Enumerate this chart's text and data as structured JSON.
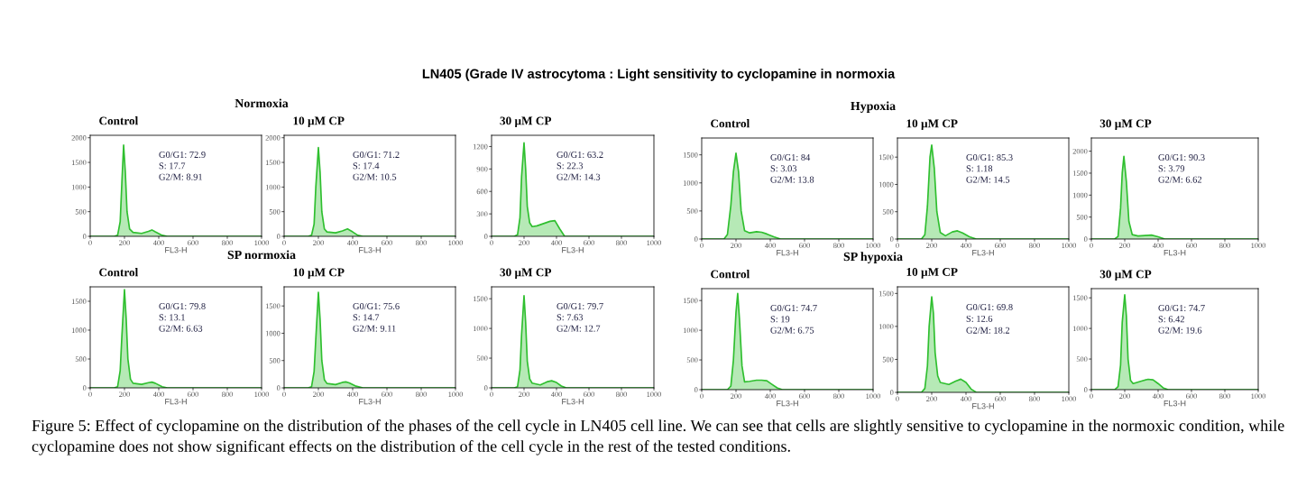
{
  "chart_data": [
    {
      "type": "other",
      "title": "LN405 (Grade IV astrocytoma : Light sensitivity to cyclopamine in normoxia",
      "annotations": [
        "Figure 5: Effect of cyclopamine on the distribution of the phases of the cell cycle in LN405 cell line. We can see that cells are slightly sensitive to cyclopamine in the normoxic condition, while cyclopamine does not show significant effects on the distribution of the cell cycle in the rest of the tested conditions."
      ]
    },
    {
      "type": "area",
      "subtitle": "Normoxia",
      "title": "Control",
      "xlabel": "FL3-H",
      "x": [
        0,
        140,
        160,
        175,
        185,
        195,
        205,
        215,
        230,
        250,
        300,
        340,
        360,
        380,
        420,
        450,
        1000
      ],
      "series": [
        {
          "color": "#2fbf2f",
          "values": [
            0,
            0,
            20,
            300,
            1100,
            1850,
            1300,
            500,
            150,
            80,
            60,
            100,
            130,
            90,
            20,
            0,
            0
          ]
        }
      ],
      "xlim": [
        0,
        1000
      ],
      "xticks": [
        0,
        200,
        400,
        600,
        800,
        1000
      ],
      "ylim": [
        0,
        2050
      ],
      "yticks": [
        0,
        500,
        1000,
        1500,
        2000
      ],
      "annotations": [
        "G0/G1: 72.9",
        "S: 17.7",
        "G2/M: 8.91"
      ],
      "grid": false,
      "legend": false
    },
    {
      "type": "area",
      "title": "10 µM CP",
      "xlabel": "FL3-H",
      "x": [
        0,
        140,
        160,
        175,
        185,
        200,
        210,
        220,
        235,
        250,
        300,
        340,
        370,
        400,
        430,
        460,
        1000
      ],
      "series": [
        {
          "color": "#2fbf2f",
          "values": [
            0,
            0,
            20,
            250,
            1000,
            1800,
            1300,
            500,
            150,
            90,
            70,
            110,
            150,
            90,
            20,
            0,
            0
          ]
        }
      ],
      "xlim": [
        0,
        1000
      ],
      "xticks": [
        0,
        200,
        400,
        600,
        800,
        1000
      ],
      "ylim": [
        0,
        2050
      ],
      "yticks": [
        0,
        500,
        1000,
        1500,
        2000
      ],
      "annotations": [
        "G0/G1: 71.2",
        "S: 17.4",
        "G2/M: 10.5"
      ],
      "grid": false,
      "legend": false
    },
    {
      "type": "area",
      "title": "30 µM CP",
      "xlabel": "FL3-H",
      "x": [
        0,
        140,
        160,
        175,
        185,
        200,
        210,
        220,
        235,
        250,
        280,
        320,
        360,
        390,
        420,
        450,
        1000
      ],
      "series": [
        {
          "color": "#2fbf2f",
          "values": [
            0,
            0,
            20,
            250,
            800,
            1250,
            900,
            400,
            180,
            130,
            140,
            170,
            200,
            210,
            100,
            0,
            0
          ]
        }
      ],
      "xlim": [
        0,
        1000
      ],
      "xticks": [
        0,
        200,
        400,
        600,
        800,
        1000
      ],
      "ylim": [
        0,
        1350
      ],
      "yticks": [
        0,
        300,
        600,
        900,
        1200
      ],
      "annotations": [
        "G0/G1: 63.2",
        "S: 22.3",
        "G2/M: 14.3"
      ],
      "grid": false,
      "legend": false
    },
    {
      "type": "area",
      "subtitle": "Hypoxia",
      "title": "Control",
      "xlabel": "FL3-H",
      "x": [
        0,
        130,
        150,
        170,
        185,
        200,
        215,
        230,
        250,
        280,
        320,
        350,
        380,
        420,
        460,
        1000
      ],
      "series": [
        {
          "color": "#2fbf2f",
          "values": [
            0,
            0,
            80,
            600,
            1200,
            1530,
            1200,
            500,
            150,
            110,
            130,
            120,
            90,
            40,
            0,
            0
          ]
        }
      ],
      "xlim": [
        0,
        1000
      ],
      "xticks": [
        0,
        200,
        400,
        600,
        800,
        1000
      ],
      "ylim": [
        0,
        1800
      ],
      "yticks": [
        0,
        500,
        1000,
        1500
      ],
      "annotations": [
        "G0/G1: 84",
        "S: 3.03",
        "G2/M: 13.8"
      ],
      "grid": false,
      "legend": false
    },
    {
      "type": "area",
      "title": "10 µM CP",
      "xlabel": "FL3-H",
      "x": [
        0,
        140,
        160,
        175,
        190,
        200,
        215,
        230,
        250,
        280,
        320,
        350,
        380,
        420,
        460,
        1000
      ],
      "series": [
        {
          "color": "#2fbf2f",
          "values": [
            0,
            0,
            80,
            600,
            1500,
            1720,
            1300,
            500,
            120,
            60,
            130,
            150,
            110,
            40,
            0,
            0
          ]
        }
      ],
      "xlim": [
        0,
        1000
      ],
      "xticks": [
        0,
        200,
        400,
        600,
        800,
        1000
      ],
      "ylim": [
        0,
        1850
      ],
      "yticks": [
        0,
        500,
        1000,
        1500
      ],
      "annotations": [
        "G0/G1: 85.3",
        "S: 1.18",
        "G2/M: 14.5"
      ],
      "grid": false,
      "legend": false
    },
    {
      "type": "area",
      "title": "30 µM CP",
      "xlabel": "FL3-H",
      "x": [
        0,
        140,
        160,
        175,
        185,
        195,
        210,
        225,
        245,
        280,
        320,
        360,
        400,
        440,
        1000
      ],
      "series": [
        {
          "color": "#2fbf2f",
          "values": [
            0,
            0,
            60,
            700,
            1500,
            1880,
            1300,
            400,
            100,
            70,
            80,
            90,
            50,
            0,
            0
          ]
        }
      ],
      "xlim": [
        0,
        1000
      ],
      "xticks": [
        0,
        200,
        400,
        600,
        800,
        1000
      ],
      "ylim": [
        0,
        2300
      ],
      "yticks": [
        0,
        500,
        1000,
        1500,
        2000
      ],
      "annotations": [
        "G0/G1: 90.3",
        "S: 3.79",
        "G2/M: 6.62"
      ],
      "grid": false,
      "legend": false
    },
    {
      "type": "area",
      "subtitle": "SP normoxia",
      "title": "Control",
      "xlabel": "FL3-H",
      "x": [
        0,
        140,
        160,
        175,
        185,
        200,
        210,
        220,
        235,
        250,
        300,
        340,
        360,
        380,
        420,
        450,
        1000
      ],
      "series": [
        {
          "color": "#2fbf2f",
          "values": [
            0,
            0,
            20,
            300,
            900,
            1700,
            1200,
            500,
            150,
            80,
            60,
            90,
            100,
            80,
            20,
            0,
            0
          ]
        }
      ],
      "xlim": [
        0,
        1000
      ],
      "xticks": [
        0,
        200,
        400,
        600,
        800,
        1000
      ],
      "ylim": [
        0,
        1750
      ],
      "yticks": [
        0,
        500,
        1000,
        1500
      ],
      "annotations": [
        "G0/G1: 79.8",
        "S: 13.1",
        "G2/M: 6.63"
      ],
      "grid": false,
      "legend": false
    },
    {
      "type": "area",
      "title": "10 µM CP",
      "xlabel": "FL3-H",
      "x": [
        0,
        140,
        160,
        175,
        185,
        200,
        210,
        220,
        235,
        250,
        300,
        340,
        360,
        380,
        420,
        460,
        1000
      ],
      "series": [
        {
          "color": "#2fbf2f",
          "values": [
            0,
            0,
            20,
            300,
            900,
            1750,
            1250,
            500,
            150,
            80,
            60,
            100,
            110,
            90,
            30,
            0,
            0
          ]
        }
      ],
      "xlim": [
        0,
        1000
      ],
      "xticks": [
        0,
        200,
        400,
        600,
        800,
        1000
      ],
      "ylim": [
        0,
        1850
      ],
      "yticks": [
        0,
        500,
        1000,
        1500
      ],
      "annotations": [
        "G0/G1: 75.6",
        "S: 14.7",
        "G2/M: 9.11"
      ],
      "grid": false,
      "legend": false
    },
    {
      "type": "area",
      "title": "30 µM CP",
      "xlabel": "FL3-H",
      "x": [
        0,
        140,
        160,
        175,
        185,
        200,
        210,
        220,
        235,
        250,
        300,
        340,
        370,
        400,
        430,
        460,
        1000
      ],
      "series": [
        {
          "color": "#2fbf2f",
          "values": [
            0,
            0,
            20,
            300,
            900,
            1550,
            1100,
            450,
            150,
            80,
            50,
            100,
            120,
            90,
            30,
            0,
            0
          ]
        }
      ],
      "xlim": [
        0,
        1000
      ],
      "xticks": [
        0,
        200,
        400,
        600,
        800,
        1000
      ],
      "ylim": [
        0,
        1700
      ],
      "yticks": [
        0,
        500,
        1000,
        1500
      ],
      "annotations": [
        "G0/G1: 79.7",
        "S: 7.63",
        "G2/M: 12.7"
      ],
      "grid": false,
      "legend": false
    },
    {
      "type": "area",
      "subtitle": "SP hypoxia",
      "title": "Control",
      "xlabel": "FL3-H",
      "x": [
        0,
        150,
        170,
        185,
        200,
        210,
        220,
        235,
        250,
        280,
        320,
        350,
        380,
        410,
        440,
        470,
        1000
      ],
      "series": [
        {
          "color": "#2fbf2f",
          "values": [
            0,
            0,
            60,
            500,
            1300,
            1620,
            1200,
            400,
            130,
            140,
            160,
            160,
            150,
            90,
            30,
            0,
            0
          ]
        }
      ],
      "xlim": [
        0,
        1000
      ],
      "xticks": [
        0,
        200,
        400,
        600,
        800,
        1000
      ],
      "ylim": [
        0,
        1700
      ],
      "yticks": [
        0,
        500,
        1000,
        1500
      ],
      "annotations": [
        "G0/G1: 74.7",
        "S: 19",
        "G2/M: 6.75"
      ],
      "grid": false,
      "legend": false
    },
    {
      "type": "area",
      "title": "10 µM CP",
      "xlabel": "FL3-H",
      "x": [
        0,
        140,
        160,
        175,
        185,
        200,
        210,
        220,
        235,
        250,
        300,
        340,
        370,
        400,
        430,
        460,
        1000
      ],
      "series": [
        {
          "color": "#2fbf2f",
          "values": [
            0,
            0,
            60,
            400,
            1000,
            1450,
            1200,
            600,
            250,
            150,
            120,
            170,
            200,
            150,
            50,
            0,
            0
          ]
        }
      ],
      "xlim": [
        0,
        1000
      ],
      "xticks": [
        0,
        200,
        400,
        600,
        800,
        1000
      ],
      "ylim": [
        0,
        1600
      ],
      "yticks": [
        0,
        500,
        1000,
        1500
      ],
      "annotations": [
        "G0/G1: 69.8",
        "S: 12.6",
        "G2/M: 18.2"
      ],
      "grid": false,
      "legend": false
    },
    {
      "type": "area",
      "title": "30 µM CP",
      "xlabel": "FL3-H",
      "x": [
        0,
        140,
        160,
        175,
        185,
        200,
        210,
        220,
        235,
        250,
        300,
        340,
        370,
        400,
        430,
        460,
        1000
      ],
      "series": [
        {
          "color": "#2fbf2f",
          "values": [
            0,
            0,
            50,
            400,
            1100,
            1550,
            1200,
            500,
            150,
            100,
            140,
            170,
            160,
            100,
            30,
            0,
            0
          ]
        }
      ],
      "xlim": [
        0,
        1000
      ],
      "xticks": [
        0,
        200,
        400,
        600,
        800,
        1000
      ],
      "ylim": [
        0,
        1650
      ],
      "yticks": [
        0,
        500,
        1000,
        1500
      ],
      "annotations": [
        "G0/G1: 74.7",
        "S: 6.42",
        "G2/M: 19.6"
      ],
      "grid": false,
      "legend": false
    }
  ]
}
